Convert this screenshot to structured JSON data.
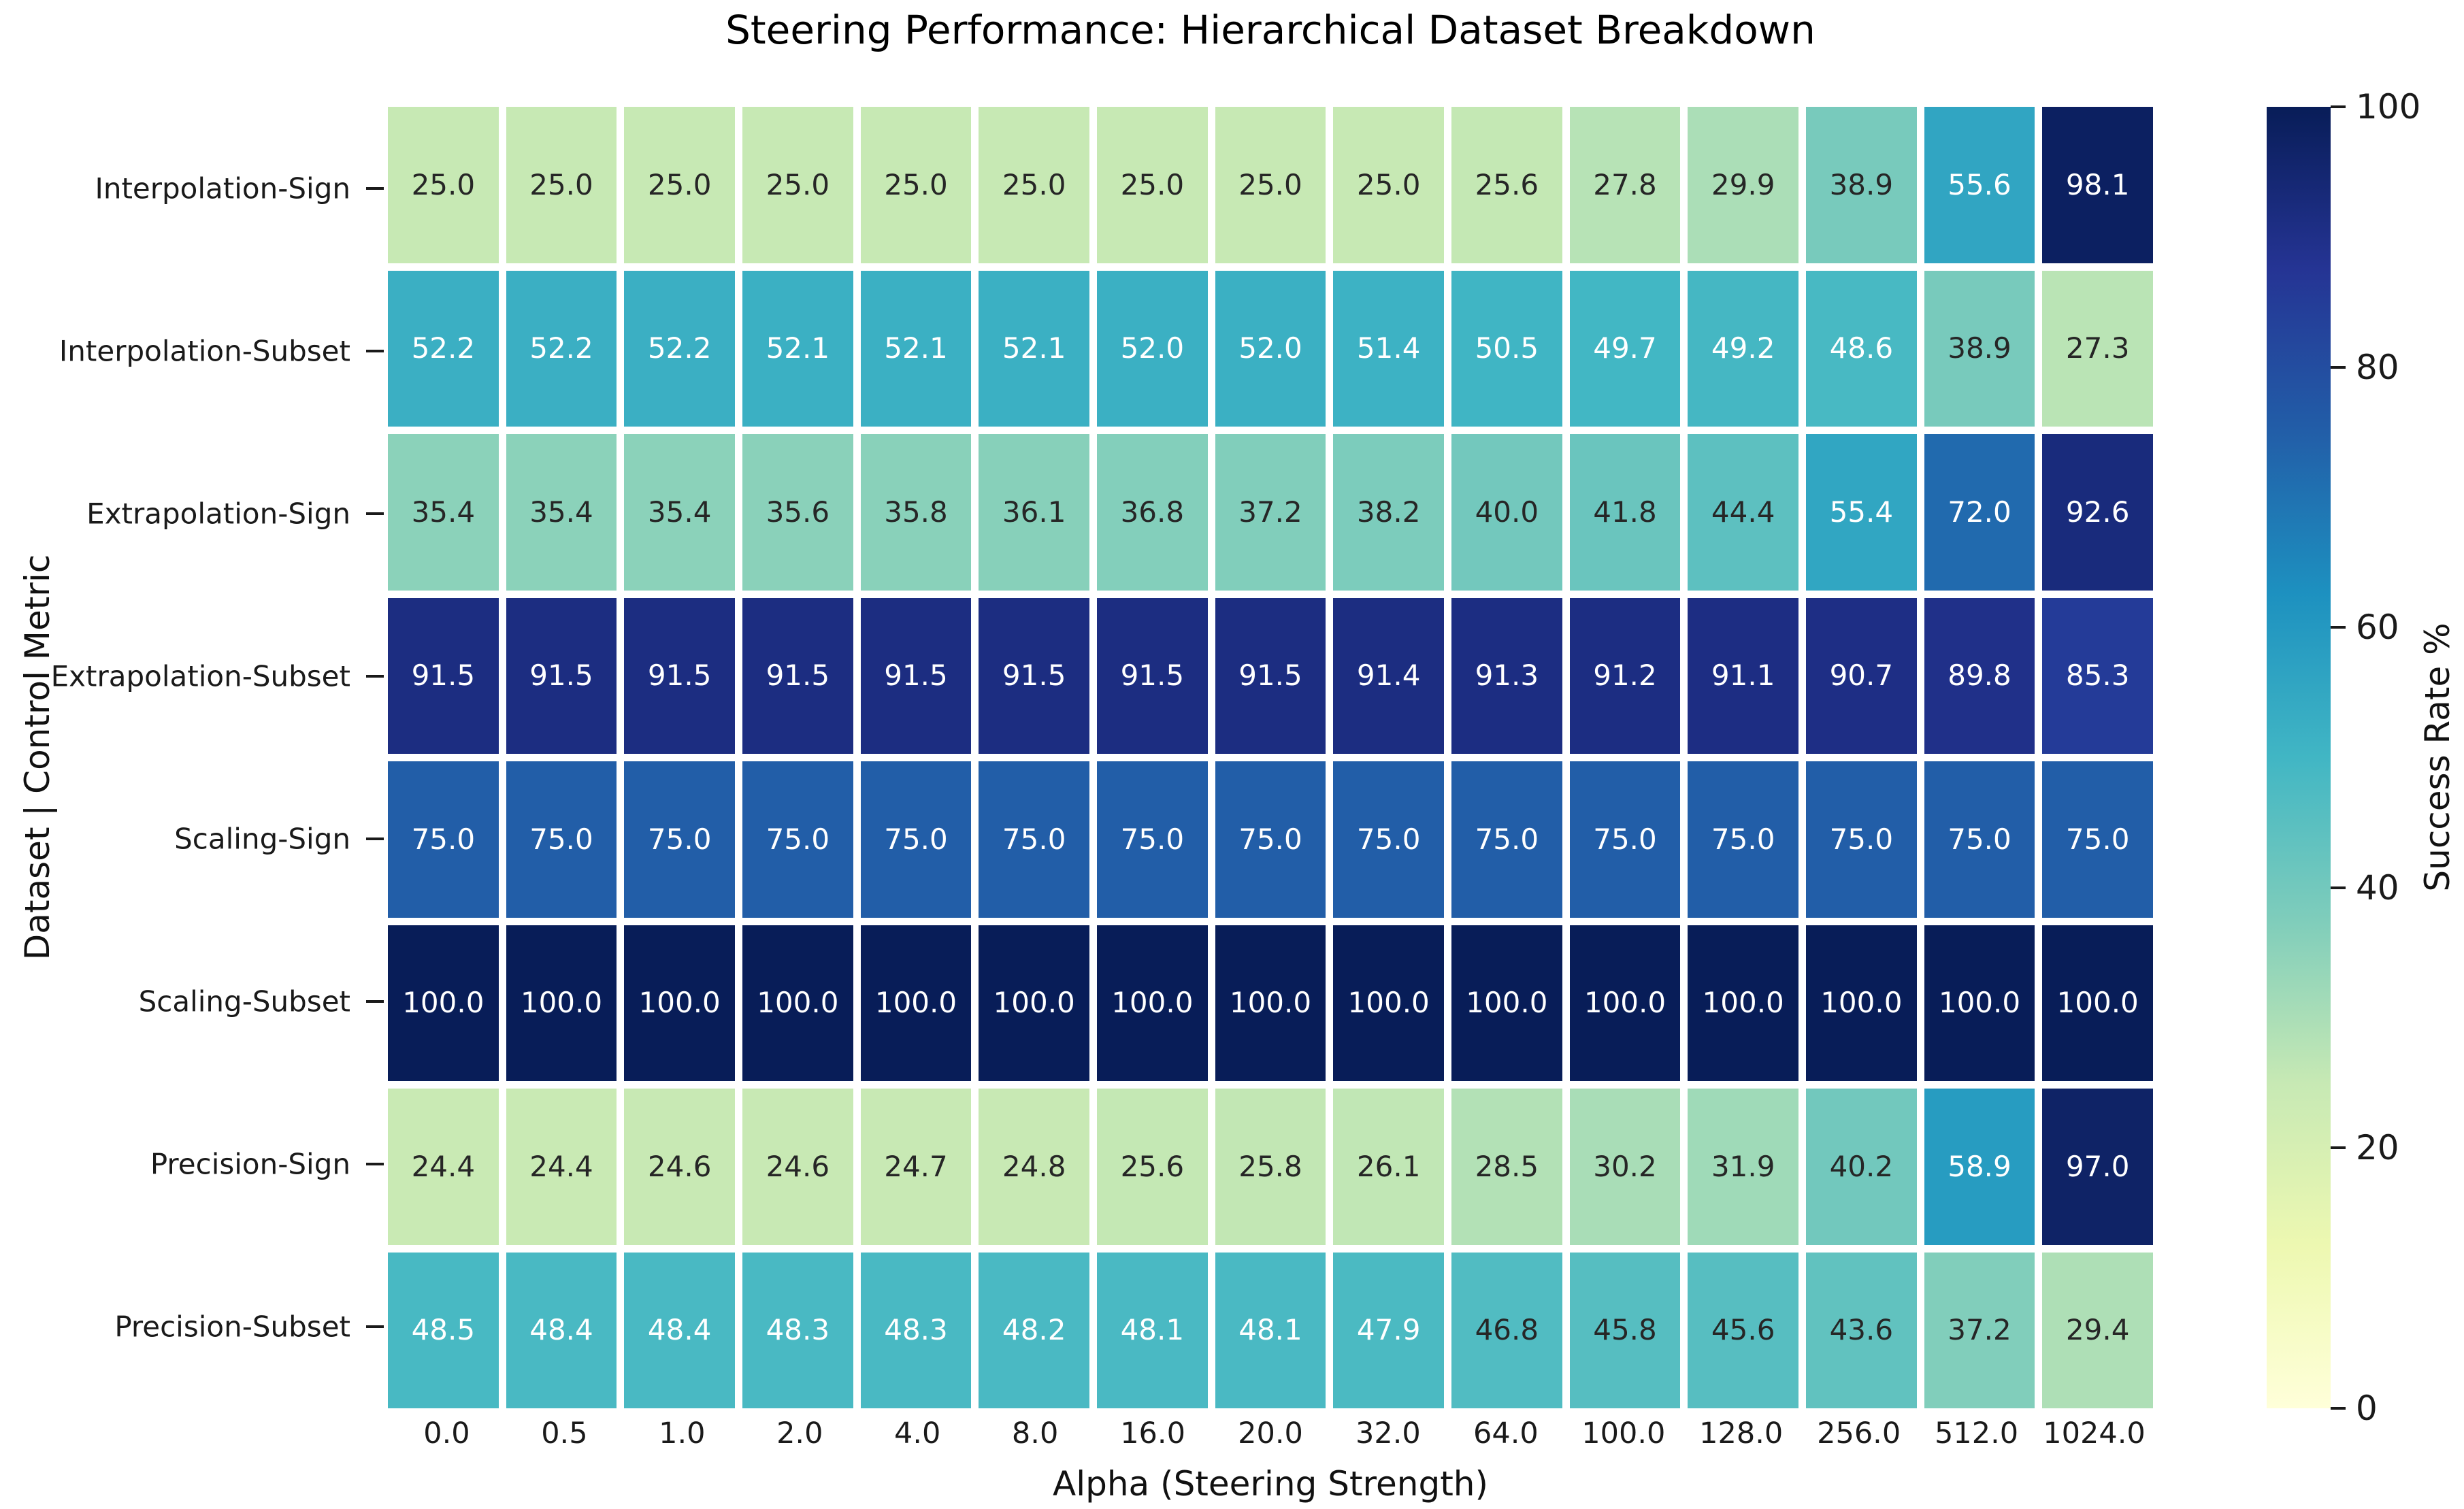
{
  "chart_data": {
    "type": "heatmap",
    "title": "Steering Performance: Hierarchical Dataset Breakdown",
    "xlabel": "Alpha (Steering Strength)",
    "ylabel": "Dataset | Control Metric",
    "x_categories": [
      "0.0",
      "0.5",
      "1.0",
      "2.0",
      "4.0",
      "8.0",
      "16.0",
      "20.0",
      "32.0",
      "64.0",
      "100.0",
      "128.0",
      "256.0",
      "512.0",
      "1024.0"
    ],
    "y_categories": [
      "Interpolation-Sign",
      "Interpolation-Subset",
      "Extrapolation-Sign",
      "Extrapolation-Subset",
      "Scaling-Sign",
      "Scaling-Subset",
      "Precision-Sign",
      "Precision-Subset"
    ],
    "values": [
      [
        25.0,
        25.0,
        25.0,
        25.0,
        25.0,
        25.0,
        25.0,
        25.0,
        25.0,
        25.6,
        27.8,
        29.9,
        38.9,
        55.6,
        98.1
      ],
      [
        52.2,
        52.2,
        52.2,
        52.1,
        52.1,
        52.1,
        52.0,
        52.0,
        51.4,
        50.5,
        49.7,
        49.2,
        48.6,
        38.9,
        27.3
      ],
      [
        35.4,
        35.4,
        35.4,
        35.6,
        35.8,
        36.1,
        36.8,
        37.2,
        38.2,
        40.0,
        41.8,
        44.4,
        55.4,
        72.0,
        92.6
      ],
      [
        91.5,
        91.5,
        91.5,
        91.5,
        91.5,
        91.5,
        91.5,
        91.5,
        91.4,
        91.3,
        91.2,
        91.1,
        90.7,
        89.8,
        85.3
      ],
      [
        75.0,
        75.0,
        75.0,
        75.0,
        75.0,
        75.0,
        75.0,
        75.0,
        75.0,
        75.0,
        75.0,
        75.0,
        75.0,
        75.0,
        75.0
      ],
      [
        100.0,
        100.0,
        100.0,
        100.0,
        100.0,
        100.0,
        100.0,
        100.0,
        100.0,
        100.0,
        100.0,
        100.0,
        100.0,
        100.0,
        100.0
      ],
      [
        24.4,
        24.4,
        24.6,
        24.6,
        24.7,
        24.8,
        25.6,
        25.8,
        26.1,
        28.5,
        30.2,
        31.9,
        40.2,
        58.9,
        97.0
      ],
      [
        48.5,
        48.4,
        48.4,
        48.3,
        48.3,
        48.2,
        48.1,
        48.1,
        47.9,
        46.8,
        45.8,
        45.6,
        43.6,
        37.2,
        29.4
      ]
    ],
    "vmin": 0,
    "vmax": 100,
    "value_decimals": 1,
    "grid_on": true,
    "grid_line_color": "#ffffff",
    "colormap": {
      "name": "YlGnBu",
      "anchors": [
        "#ffffd9",
        "#edf8b1",
        "#c7e9b4",
        "#7fcdbb",
        "#41b6c4",
        "#1d91c0",
        "#225ea8",
        "#253494",
        "#081d58"
      ]
    },
    "annotation_colors": {
      "on_light": "#262626",
      "on_dark": "#ffffff"
    },
    "colorbar": {
      "label": "Success Rate %",
      "tick_labels": [
        "100",
        "80",
        "60",
        "40",
        "20",
        "0"
      ],
      "position": "right"
    }
  }
}
